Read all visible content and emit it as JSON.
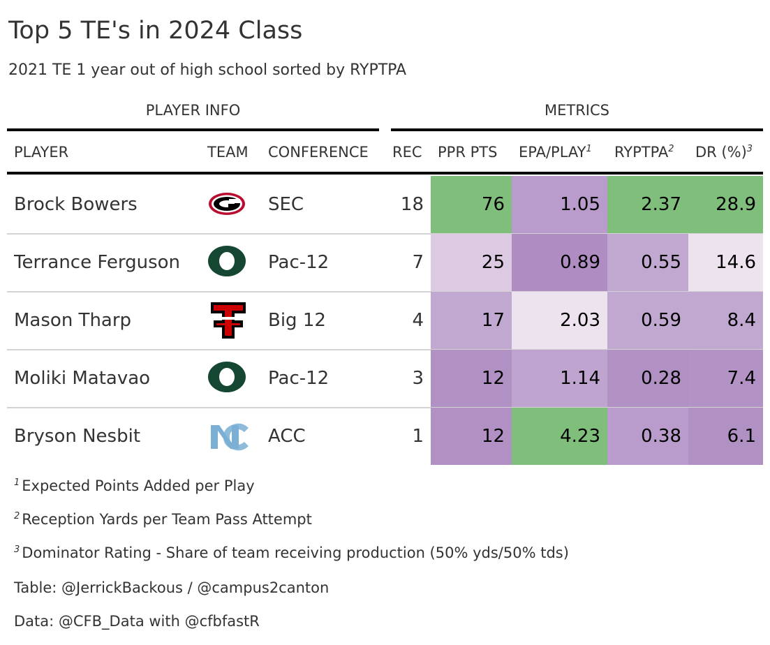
{
  "title": "Top 5 TE's in 2024 Class",
  "subtitle": "2021 TE 1 year out of high school sorted by RYPTPA",
  "spanners": {
    "player_info": "PLAYER INFO",
    "metrics": "METRICS"
  },
  "columns": {
    "player": "PLAYER",
    "team": "TEAM",
    "conference": "CONFERENCE",
    "rec": "REC",
    "ppr": "PPR PTS",
    "epa": "EPA/PLAY",
    "epa_mark": "1",
    "ryptpa": "RYPTPA",
    "ryptpa_mark": "2",
    "dr": "DR (%)",
    "dr_mark": "3"
  },
  "chart_data": {
    "type": "table",
    "columns": [
      "PLAYER",
      "TEAM",
      "CONFERENCE",
      "REC",
      "PPR PTS",
      "EPA/PLAY",
      "RYPTPA",
      "DR (%)"
    ],
    "rows": [
      {
        "player": "Brock Bowers",
        "team_logo": "georgia-g-logo",
        "conference": "SEC",
        "rec": "18",
        "ppr": "76",
        "epa": "1.05",
        "ryptpa": "2.37",
        "dr": "28.9"
      },
      {
        "player": "Terrance Ferguson",
        "team_logo": "oregon-o-logo",
        "conference": "Pac-12",
        "rec": "7",
        "ppr": "25",
        "epa": "0.89",
        "ryptpa": "0.55",
        "dr": "14.6"
      },
      {
        "player": "Mason Tharp",
        "team_logo": "texas-tech-double-t-logo",
        "conference": "Big 12",
        "rec": "4",
        "ppr": "17",
        "epa": "2.03",
        "ryptpa": "0.59",
        "dr": "8.4"
      },
      {
        "player": "Moliki Matavao",
        "team_logo": "oregon-o-logo",
        "conference": "Pac-12",
        "rec": "3",
        "ppr": "12",
        "epa": "1.14",
        "ryptpa": "0.28",
        "dr": "7.4"
      },
      {
        "player": "Bryson Nesbit",
        "team_logo": "unc-nc-logo",
        "conference": "ACC",
        "rec": "1",
        "ppr": "12",
        "epa": "4.23",
        "ryptpa": "0.38",
        "dr": "6.1"
      }
    ],
    "color_scale": {
      "low": "#af8dc3",
      "mid": "#f7f7f7",
      "high": "#7fbf7b"
    },
    "cell_colors": [
      {
        "ppr": "#7fbf7b",
        "epa": "#b99ccb",
        "ryptpa": "#7fbf7b",
        "dr": "#7fbf7b"
      },
      {
        "ppr": "#dcc9e2",
        "epa": "#af8dc3",
        "ryptpa": "#c1a8d0",
        "dr": "#ede3ee"
      },
      {
        "ppr": "#c1a8d0",
        "epa": "#ede3ee",
        "ryptpa": "#c1a8d0",
        "dr": "#c1a8d0"
      },
      {
        "ppr": "#b191c4",
        "epa": "#bfa4cf",
        "ryptpa": "#b191c4",
        "dr": "#b393c6"
      },
      {
        "ppr": "#b191c4",
        "epa": "#7fbf7b",
        "ryptpa": "#b99ccb",
        "dr": "#b191c4"
      }
    ]
  },
  "team_colors": {
    "georgia": "#ba0c2f",
    "oregon": "#154733",
    "texas_tech": "#cc0000",
    "unc": "#7bafd4"
  },
  "footnotes": [
    {
      "mark": "1",
      "text": "Expected Points Added per Play"
    },
    {
      "mark": "2",
      "text": "Reception Yards per Team Pass Attempt"
    },
    {
      "mark": "3",
      "text": "Dominator Rating - Share of team receiving production (50% yds/50% tds)"
    }
  ],
  "source_notes": [
    "Table: @JerrickBackous / @campus2canton",
    "Data: @CFB_Data with @cfbfastR"
  ]
}
